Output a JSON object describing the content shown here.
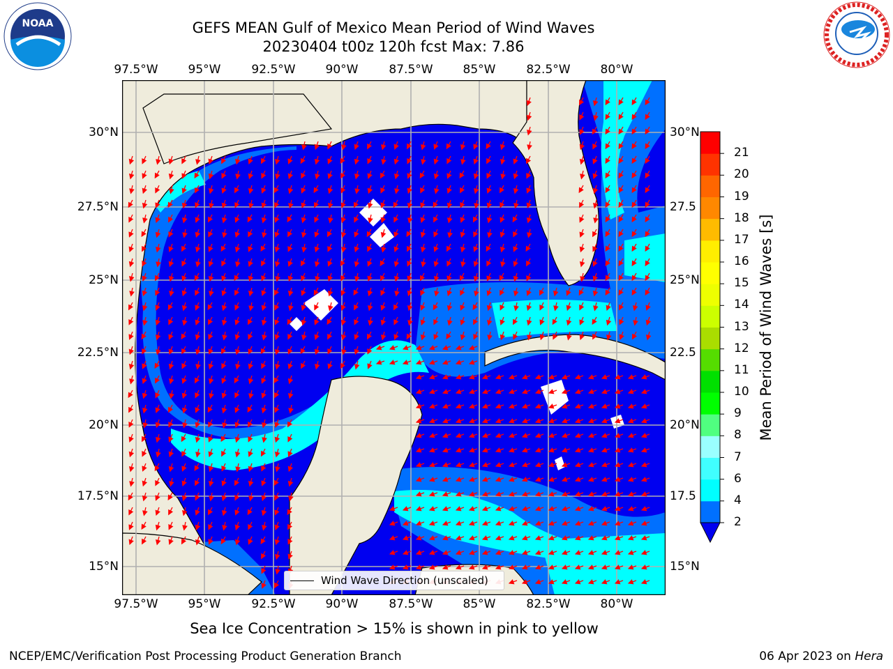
{
  "header": {
    "title_line1": "GEFS MEAN Gulf of Mexico Mean Period of Wind Waves",
    "title_line2": "20230404 t00z 120h fcst   Max: 7.86",
    "noaa_logo_text": "NOAA",
    "noaa_ring_text": "NATIONAL OCEANIC AND ATMOSPHERIC ADMINISTRATION · U.S. DEPARTMENT OF COMMERCE",
    "nws_ring_text": "NATIONAL WEATHER SERVICE"
  },
  "map": {
    "lon_labels": [
      "97.5°W",
      "95°W",
      "92.5°W",
      "90°W",
      "87.5°W",
      "85°W",
      "82.5°W",
      "80°W"
    ],
    "lat_labels_left": [
      "30°N",
      "27.5°N",
      "25°N",
      "22.5°N",
      "20°N",
      "17.5°N",
      "15°N"
    ],
    "lat_labels_right": [
      "30°N",
      "27.5",
      "25°N",
      "22.5",
      "20°N",
      "17.5",
      "15°N"
    ],
    "legend_label": "Wind Wave Direction (unscaled)",
    "colors": {
      "land": "#efecdc",
      "deep": "#0000f0",
      "mid": "#0070ff",
      "light": "#00ffff",
      "arrow": "#ff0000"
    }
  },
  "colorbar": {
    "label": "Mean Period of Wind Waves [s]",
    "ticks": [
      "2",
      "4",
      "6",
      "7",
      "8",
      "9",
      "10",
      "11",
      "12",
      "13",
      "14",
      "15",
      "16",
      "17",
      "18",
      "19",
      "20",
      "21"
    ],
    "colors": [
      "#0070ff",
      "#00ffff",
      "#40ffff",
      "#9affff",
      "#50ff80",
      "#00ff00",
      "#00e000",
      "#55dd00",
      "#aadd00",
      "#ccff00",
      "#eeff00",
      "#ffff00",
      "#ffee00",
      "#ffbb00",
      "#ff8800",
      "#ff6600",
      "#ff3300",
      "#ff0000"
    ],
    "under_color": "#0000f0"
  },
  "footer": {
    "note": "Sea Ice Concentration > 15% is shown in pink to yellow",
    "left": "NCEP/EMC/Verification Post Processing Product Generation Branch",
    "right_prefix": "06 Apr 2023 on ",
    "right_host": "Hera"
  }
}
